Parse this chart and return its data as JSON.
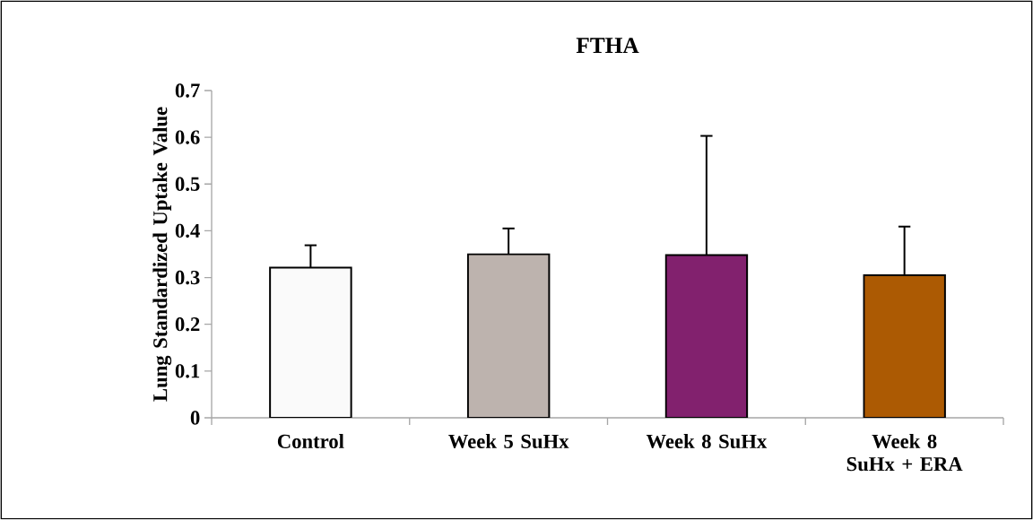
{
  "chart_data": {
    "type": "bar",
    "title": "FTHA",
    "ylabel": "Lung Standardized Uptake Value",
    "categories": [
      "Control",
      "Week 5 SuHx",
      "Week 8 SuHx",
      "Week 8 SuHx + ERA"
    ],
    "values": [
      0.321,
      0.35,
      0.348,
      0.305
    ],
    "colors": [
      "#fafafa",
      "#bdb3ae",
      "#82216e",
      "#ac5a03"
    ],
    "errors": [
      [
        0.321,
        0.369
      ],
      [
        0.35,
        0.405
      ],
      [
        0.348,
        0.603
      ],
      [
        0.305,
        0.409
      ]
    ],
    "ylim": [
      0,
      0.7
    ],
    "yticks": [
      0,
      0.1,
      0.2,
      0.3,
      0.4,
      0.5,
      0.6,
      0.7
    ],
    "grid": false
  }
}
